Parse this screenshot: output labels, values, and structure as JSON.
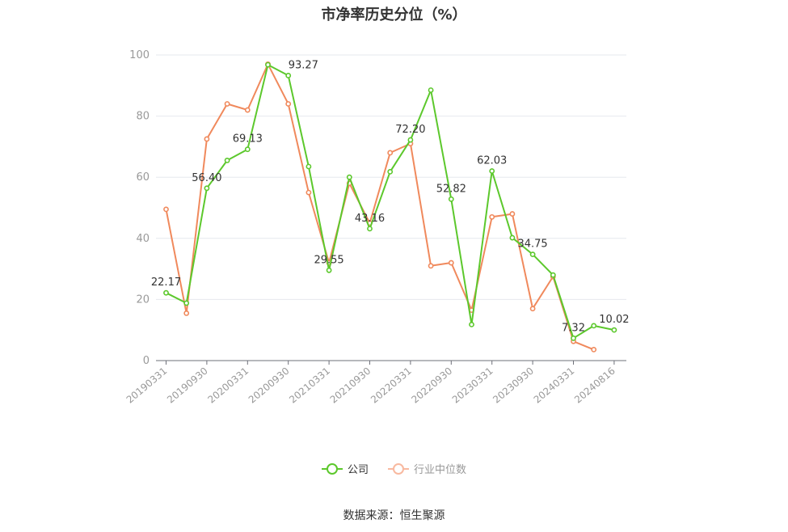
{
  "chart_data": {
    "type": "line",
    "title": "市净率历史分位（%）",
    "x": [
      "20190331",
      "20190630",
      "20190930",
      "20191231",
      "20200331",
      "20200630",
      "20200930",
      "20201231",
      "20210331",
      "20210630",
      "20210930",
      "20211231",
      "20220331",
      "20220630",
      "20220930",
      "20221231",
      "20230331",
      "20230630",
      "20230930",
      "20231231",
      "20240331",
      "20240630",
      "20240816"
    ],
    "xtick_labels": [
      "20190331",
      "20190930",
      "20200331",
      "20200930",
      "20210331",
      "20210930",
      "20220331",
      "20220930",
      "20230331",
      "20230930",
      "20240331",
      "20240816"
    ],
    "ylim": [
      0,
      100
    ],
    "yticks": [
      0,
      20,
      40,
      60,
      80,
      100
    ],
    "grid": true,
    "legend_position": "bottom",
    "series": [
      {
        "name": "公司",
        "color": "#5cc82c",
        "values": [
          22.17,
          18.8,
          56.4,
          65.5,
          69.13,
          96.8,
          93.27,
          63.5,
          29.55,
          60.0,
          43.16,
          61.8,
          72.2,
          88.5,
          52.82,
          11.8,
          62.03,
          40.2,
          34.75,
          28.0,
          7.32,
          11.4,
          10.02
        ],
        "labels": {
          "0": "22.17",
          "2": "56.40",
          "4": "69.13",
          "6": "93.27",
          "8": "29.55",
          "10": "43.16",
          "12": "72.20",
          "14": "52.82",
          "16": "62.03",
          "18": "34.75",
          "20": "7.32",
          "22": "10.02"
        }
      },
      {
        "name": "行业中位数",
        "color": "#f0895c",
        "values": [
          49.5,
          15.5,
          72.5,
          84.0,
          82.0,
          97.0,
          84.0,
          55.0,
          32.0,
          58.0,
          45.0,
          68.0,
          71.0,
          31.0,
          32.0,
          16.5,
          47.0,
          48.0,
          17.0,
          27.5,
          6.3,
          3.6,
          null
        ]
      }
    ]
  },
  "legend": {
    "company_label": "公司",
    "industry_label": "行业中位数",
    "industry_inactive_color": "#f8b9a0"
  },
  "source_text": "数据来源：恒生聚源"
}
